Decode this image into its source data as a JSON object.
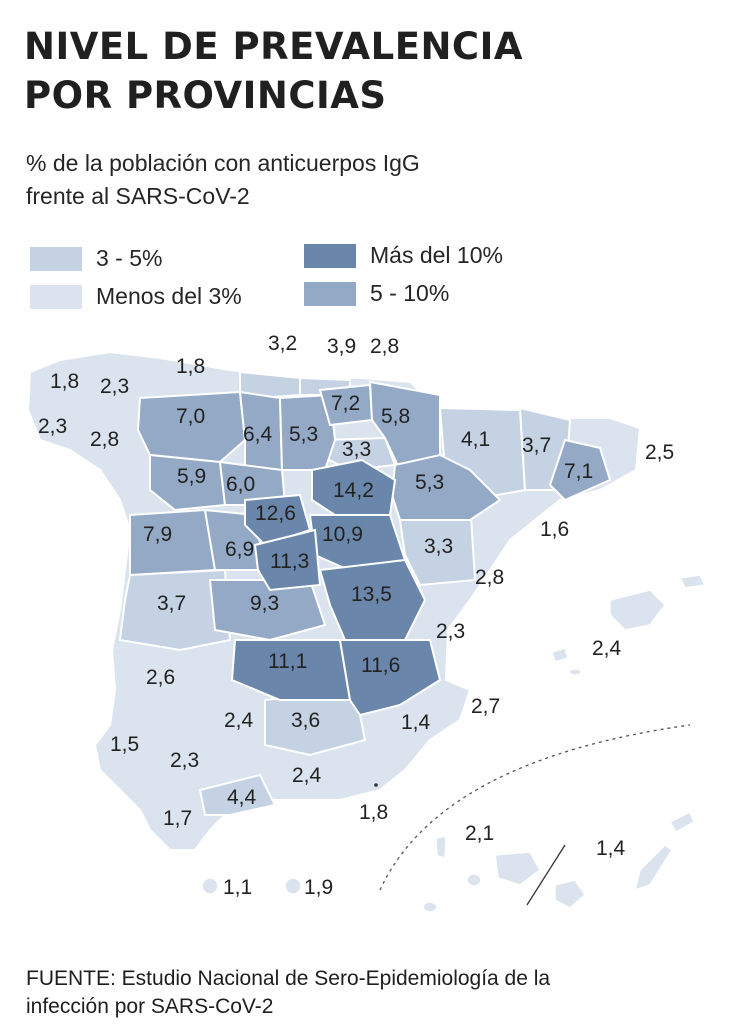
{
  "title": {
    "line1": "NIVEL DE PREVALENCIA",
    "line2": "POR PROVINCIAS"
  },
  "subtitle": {
    "line1": "% de la población con anticuerpos IgG",
    "line2": "frente al SARS-CoV-2"
  },
  "legend": [
    {
      "label": "3 - 5%",
      "color": "#c5d2e3"
    },
    {
      "label": "Menos del 3%",
      "color": "#dbe4ee"
    },
    {
      "label": "Más del 10%",
      "color": "#6a87ab"
    },
    {
      "label": "5 - 10%",
      "color": "#93a9c6"
    }
  ],
  "provinces": [
    {
      "name": "A Coruña",
      "value": "1,8",
      "class": "low"
    },
    {
      "name": "Lugo",
      "value": "2,3",
      "class": "low"
    },
    {
      "name": "Asturias",
      "value": "1,8",
      "class": "low"
    },
    {
      "name": "Cantabria",
      "value": "3,2",
      "class": "mid"
    },
    {
      "name": "Bizkaia",
      "value": "3,9",
      "class": "mid"
    },
    {
      "name": "Gipuzkoa",
      "value": "2,8",
      "class": "low"
    },
    {
      "name": "Pontevedra",
      "value": "2,3",
      "class": "low"
    },
    {
      "name": "Ourense",
      "value": "2,8",
      "class": "low"
    },
    {
      "name": "León",
      "value": "7,0",
      "class": "high"
    },
    {
      "name": "Palencia",
      "value": "6,4",
      "class": "high"
    },
    {
      "name": "Burgos",
      "value": "5,3",
      "class": "high"
    },
    {
      "name": "Álava",
      "value": "7,2",
      "class": "high"
    },
    {
      "name": "Navarra",
      "value": "5,8",
      "class": "high"
    },
    {
      "name": "La Rioja",
      "value": "3,3",
      "class": "mid"
    },
    {
      "name": "Huesca",
      "value": "4,1",
      "class": "mid"
    },
    {
      "name": "Lleida",
      "value": "3,7",
      "class": "mid"
    },
    {
      "name": "Barcelona",
      "value": "7,1",
      "class": "high"
    },
    {
      "name": "Girona",
      "value": "2,5",
      "class": "low"
    },
    {
      "name": "Zamora",
      "value": "5,9",
      "class": "high"
    },
    {
      "name": "Valladolid",
      "value": "6,0",
      "class": "high"
    },
    {
      "name": "Soria",
      "value": "14,2",
      "class": "vhigh"
    },
    {
      "name": "Zaragoza",
      "value": "5,3",
      "class": "high"
    },
    {
      "name": "Tarragona",
      "value": "1,6",
      "class": "low"
    },
    {
      "name": "Salamanca",
      "value": "7,9",
      "class": "high"
    },
    {
      "name": "Ávila",
      "value": "6,9",
      "class": "high"
    },
    {
      "name": "Segovia",
      "value": "12,6",
      "class": "vhigh"
    },
    {
      "name": "Guadalajara",
      "value": "10,9",
      "class": "vhigh"
    },
    {
      "name": "Madrid",
      "value": "11,3",
      "class": "vhigh"
    },
    {
      "name": "Teruel",
      "value": "3,3",
      "class": "mid"
    },
    {
      "name": "Castellón",
      "value": "2,8",
      "class": "low"
    },
    {
      "name": "Cáceres",
      "value": "3,7",
      "class": "mid"
    },
    {
      "name": "Toledo",
      "value": "9,3",
      "class": "high"
    },
    {
      "name": "Cuenca",
      "value": "13,5",
      "class": "vhigh"
    },
    {
      "name": "Valencia",
      "value": "2,3",
      "class": "low"
    },
    {
      "name": "Islas Baleares",
      "value": "2,4",
      "class": "low"
    },
    {
      "name": "Badajoz",
      "value": "2,6",
      "class": "low"
    },
    {
      "name": "Ciudad Real",
      "value": "11,1",
      "class": "vhigh"
    },
    {
      "name": "Albacete",
      "value": "11,6",
      "class": "vhigh"
    },
    {
      "name": "Alicante",
      "value": "2,7",
      "class": "low"
    },
    {
      "name": "Córdoba",
      "value": "2,4",
      "class": "low"
    },
    {
      "name": "Jaén",
      "value": "3,6",
      "class": "mid"
    },
    {
      "name": "Murcia",
      "value": "1,4",
      "class": "low"
    },
    {
      "name": "Huelva",
      "value": "1,5",
      "class": "low"
    },
    {
      "name": "Sevilla",
      "value": "2,3",
      "class": "low"
    },
    {
      "name": "Granada",
      "value": "2,4",
      "class": "low"
    },
    {
      "name": "Málaga",
      "value": "4,4",
      "class": "mid"
    },
    {
      "name": "Cádiz",
      "value": "1,7",
      "class": "low"
    },
    {
      "name": "Almería",
      "value": "1,8",
      "class": "low"
    },
    {
      "name": "Ceuta",
      "value": "1,1",
      "class": "low"
    },
    {
      "name": "Melilla",
      "value": "1,9",
      "class": "low"
    },
    {
      "name": "Santa Cruz de Tenerife",
      "value": "2,1",
      "class": "low"
    },
    {
      "name": "Las Palmas",
      "value": "1,4",
      "class": "low"
    }
  ],
  "footer": {
    "line1": "FUENTE: Estudio Nacional de Sero-Epidemiología de la",
    "line2": "infección por SARS-CoV-2"
  }
}
